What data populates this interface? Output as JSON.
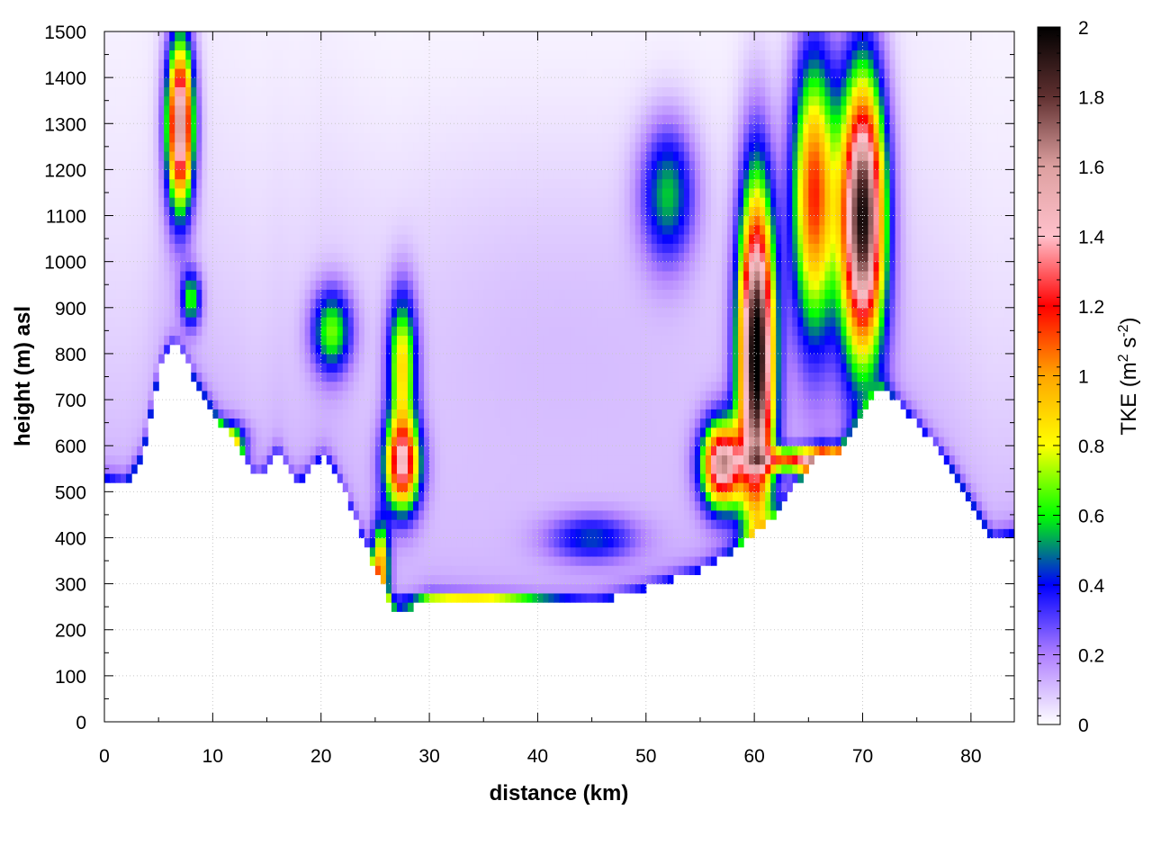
{
  "chart_data": {
    "type": "heatmap",
    "title": "",
    "xlabel": "distance (km)",
    "ylabel": "height (m) asl",
    "xlim": [
      0,
      84
    ],
    "ylim": [
      0,
      1500
    ],
    "x_ticks": [
      0,
      10,
      20,
      30,
      40,
      50,
      60,
      70,
      80
    ],
    "y_ticks": [
      0,
      100,
      200,
      300,
      400,
      500,
      600,
      700,
      800,
      900,
      1000,
      1100,
      1200,
      1300,
      1400,
      1500
    ],
    "grid": true,
    "colorbar": {
      "label": "TKE (m",
      "label_sup1": "2",
      "label_mid": " s",
      "label_sup2": "-2",
      "label_end": ")",
      "range": [
        0,
        2
      ],
      "ticks": [
        "0",
        "0.2",
        "0.4",
        "0.6",
        "0.8",
        "1",
        "1.2",
        "1.4",
        "1.6",
        "1.8",
        "2"
      ],
      "stops": [
        {
          "v": 0.0,
          "color": "#ffffff"
        },
        {
          "v": 0.2,
          "color": "#b080ff"
        },
        {
          "v": 0.4,
          "color": "#0000ff"
        },
        {
          "v": 0.6,
          "color": "#00ff00"
        },
        {
          "v": 0.8,
          "color": "#ffff00"
        },
        {
          "v": 1.0,
          "color": "#ffa500"
        },
        {
          "v": 1.2,
          "color": "#ff0000"
        },
        {
          "v": 1.4,
          "color": "#ffc0cb"
        },
        {
          "v": 1.6,
          "color": "#dda0a0"
        },
        {
          "v": 1.8,
          "color": "#603030"
        },
        {
          "v": 2.0,
          "color": "#000000"
        }
      ]
    },
    "terrain": [
      [
        0,
        530
      ],
      [
        2,
        520
      ],
      [
        3.5,
        580
      ],
      [
        5,
        760
      ],
      [
        6,
        820
      ],
      [
        7,
        810
      ],
      [
        8,
        760
      ],
      [
        9.5,
        700
      ],
      [
        11,
        640
      ],
      [
        12.5,
        600
      ],
      [
        13.5,
        540
      ],
      [
        14.5,
        530
      ],
      [
        16,
        590
      ],
      [
        17.5,
        520
      ],
      [
        18.5,
        530
      ],
      [
        20,
        575
      ],
      [
        21,
        560
      ],
      [
        23,
        450
      ],
      [
        24.5,
        360
      ],
      [
        26,
        280
      ],
      [
        27,
        240
      ],
      [
        28,
        245
      ],
      [
        30,
        270
      ],
      [
        35,
        260
      ],
      [
        40,
        250
      ],
      [
        45,
        255
      ],
      [
        50,
        290
      ],
      [
        55,
        330
      ],
      [
        58,
        370
      ],
      [
        60,
        410
      ],
      [
        62,
        450
      ],
      [
        64,
        520
      ],
      [
        66,
        590
      ],
      [
        67.5,
        580
      ],
      [
        69.5,
        650
      ],
      [
        71,
        710
      ],
      [
        72,
        730
      ],
      [
        73,
        700
      ],
      [
        75,
        650
      ],
      [
        78,
        560
      ],
      [
        80,
        480
      ],
      [
        82,
        400
      ],
      [
        84,
        410
      ]
    ],
    "features": [
      {
        "x": 7,
        "y": 1300,
        "rx": 1.2,
        "ry": 180,
        "value": 1.6
      },
      {
        "x": 8,
        "y": 920,
        "rx": 0.9,
        "ry": 60,
        "value": 0.55
      },
      {
        "x": 11.5,
        "y": 610,
        "rx": 1.5,
        "ry": 40,
        "value": 0.6
      },
      {
        "x": 21,
        "y": 850,
        "rx": 1.8,
        "ry": 90,
        "value": 0.6
      },
      {
        "x": 27.5,
        "y": 560,
        "rx": 1.6,
        "ry": 100,
        "value": 1.3
      },
      {
        "x": 27.5,
        "y": 780,
        "rx": 1.3,
        "ry": 150,
        "value": 0.8
      },
      {
        "x": 25.5,
        "y": 340,
        "rx": 0.8,
        "ry": 90,
        "value": 0.9
      },
      {
        "x": 35,
        "y": 262,
        "rx": 7,
        "ry": 15,
        "value": 0.7
      },
      {
        "x": 45,
        "y": 400,
        "rx": 4,
        "ry": 50,
        "value": 0.35
      },
      {
        "x": 52,
        "y": 1150,
        "rx": 2.5,
        "ry": 150,
        "value": 0.5
      },
      {
        "x": 57,
        "y": 560,
        "rx": 1.8,
        "ry": 90,
        "value": 1.5
      },
      {
        "x": 60.2,
        "y": 800,
        "rx": 1.6,
        "ry": 350,
        "value": 2.0
      },
      {
        "x": 65.5,
        "y": 1150,
        "rx": 2,
        "ry": 300,
        "value": 1.1
      },
      {
        "x": 70,
        "y": 1100,
        "rx": 2,
        "ry": 300,
        "value": 1.9
      },
      {
        "x": 66,
        "y": 570,
        "rx": 5,
        "ry": 25,
        "value": 1.3
      }
    ]
  }
}
